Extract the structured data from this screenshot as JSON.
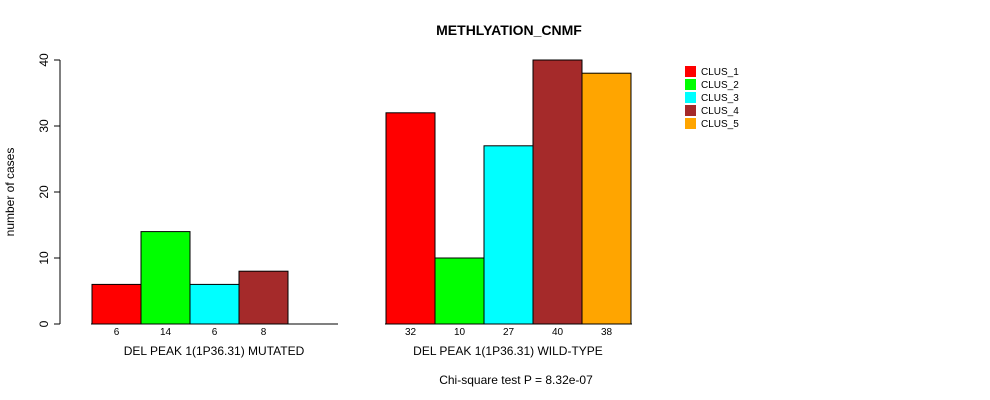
{
  "chart_data": {
    "type": "bar",
    "title": "METHLYATION_CNMF",
    "ylabel": "number of cases",
    "xlabel": "",
    "ylim": [
      0,
      40
    ],
    "yticks": [
      0,
      10,
      20,
      30,
      40
    ],
    "footnote": "Chi-square test P = 8.32e-07",
    "legend_position": "top-right",
    "series": [
      {
        "name": "CLUS_1",
        "color": "#ff0000"
      },
      {
        "name": "CLUS_2",
        "color": "#00ff00"
      },
      {
        "name": "CLUS_3",
        "color": "#00ffff"
      },
      {
        "name": "CLUS_4",
        "color": "#a52a2a"
      },
      {
        "name": "CLUS_5",
        "color": "#ffa500"
      }
    ],
    "groups": [
      {
        "label": "DEL PEAK  1(1P36.31) MUTATED",
        "values": [
          6,
          14,
          6,
          8,
          0
        ],
        "value_labels": [
          "6",
          "14",
          "6",
          "8",
          ""
        ]
      },
      {
        "label": "DEL PEAK  1(1P36.31) WILD-TYPE",
        "values": [
          32,
          10,
          27,
          40,
          38
        ],
        "value_labels": [
          "32",
          "10",
          "27",
          "40",
          "38"
        ]
      }
    ]
  }
}
